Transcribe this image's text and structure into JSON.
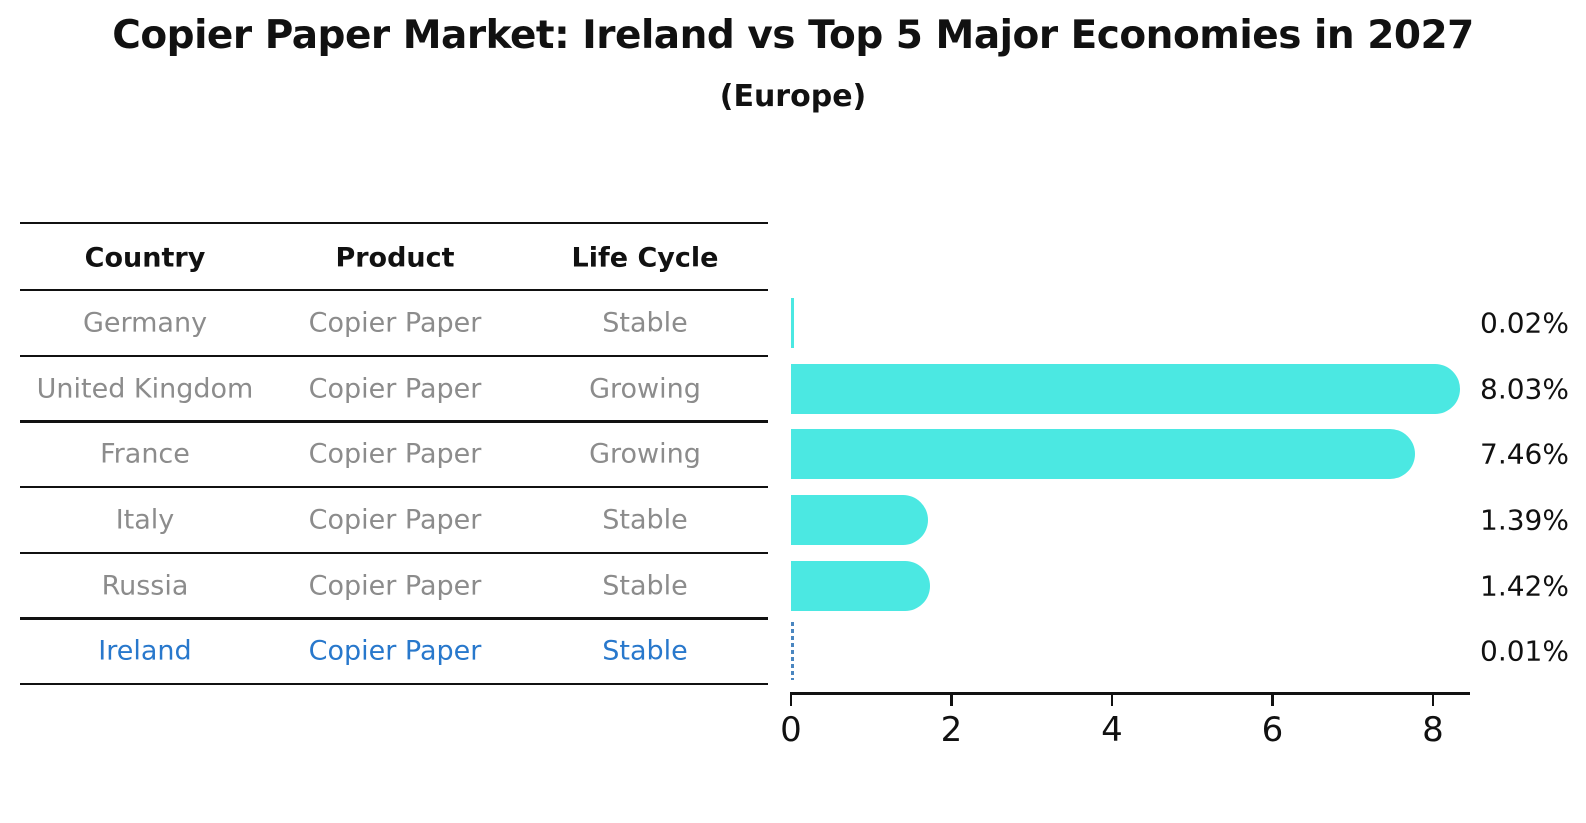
{
  "title": "Copier Paper Market: Ireland vs Top 5 Major Economies in 2027",
  "subtitle": "(Europe)",
  "table": {
    "headers": [
      "Country",
      "Product",
      "Life Cycle"
    ],
    "rows": [
      {
        "country": "Germany",
        "product": "Copier Paper",
        "life_cycle": "Stable",
        "share_label": "0.02%",
        "highlight": false
      },
      {
        "country": "United Kingdom",
        "product": "Copier Paper",
        "life_cycle": "Growing",
        "share_label": "8.03%",
        "highlight": false
      },
      {
        "country": "France",
        "product": "Copier Paper",
        "life_cycle": "Growing",
        "share_label": "7.46%",
        "highlight": false
      },
      {
        "country": "Italy",
        "product": "Copier Paper",
        "life_cycle": "Stable",
        "share_label": "1.39%",
        "highlight": false
      },
      {
        "country": "Russia",
        "product": "Copier Paper",
        "life_cycle": "Stable",
        "share_label": "1.42%",
        "highlight": false
      },
      {
        "country": "Ireland",
        "product": "Copier Paper",
        "life_cycle": "Stable",
        "share_label": "0.01%",
        "highlight": true
      }
    ]
  },
  "chart_data": {
    "type": "bar",
    "orientation": "horizontal",
    "title": "Copier Paper Market: Ireland vs Top 5 Major Economies in 2027",
    "subtitle": "(Europe)",
    "categories": [
      "Germany",
      "United Kingdom",
      "France",
      "Italy",
      "Russia",
      "Ireland"
    ],
    "values": [
      0.02,
      8.03,
      7.46,
      1.39,
      1.42,
      0.01
    ],
    "value_labels": [
      "0.02%",
      "8.03%",
      "7.46%",
      "1.39%",
      "1.42%",
      "0.01%"
    ],
    "xlabel": "",
    "ylabel": "",
    "xlim": [
      0,
      8.5
    ],
    "xticks": [
      0,
      2,
      4,
      6,
      8
    ],
    "grid": false,
    "legend": false,
    "highlight_index": 5,
    "highlight_style": "dashed-outline"
  },
  "colors": {
    "bar": "#4BE8E2",
    "highlight_text": "#2878CC",
    "highlight_dash": "#4a86c0",
    "row_text": "#8C8C8C",
    "heading_text": "#111111",
    "axis": "#111111",
    "background": "#FFFFFF"
  }
}
